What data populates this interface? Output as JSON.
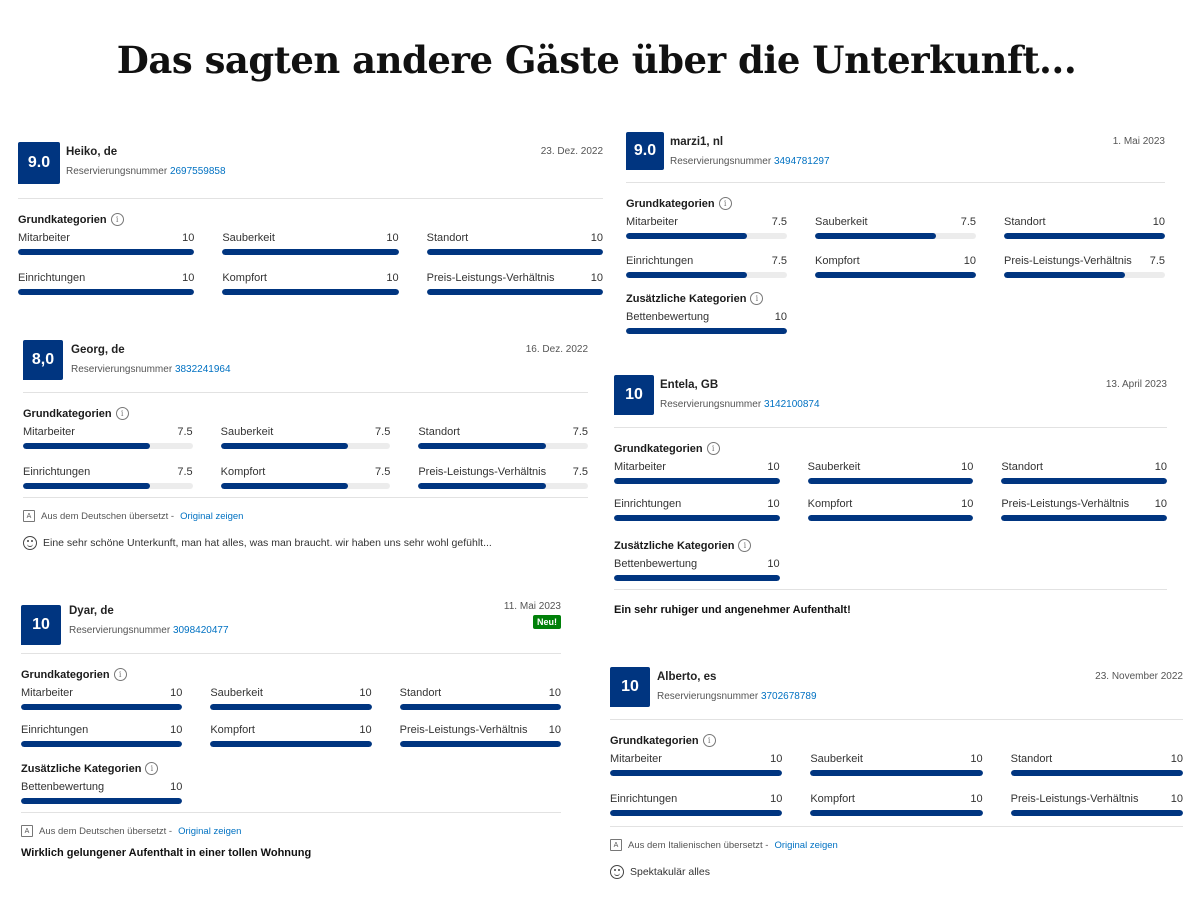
{
  "page": {
    "title": "Das sagten andere Gäste über die Unterkunft..."
  },
  "labels": {
    "reservation": "Reservierungsnummer",
    "core_categories": "Grundkategorien",
    "extra_categories": "Zusätzliche Kategorien",
    "info_icon": "i",
    "original_link": "Original zeigen"
  },
  "reviews": [
    {
      "name": "Heiko, de",
      "score": "9.0",
      "date": "23. Dez. 2022",
      "booking": "2697559858",
      "categories": [
        {
          "label": "Mitarbeiter",
          "value": "10"
        },
        {
          "label": "Sauberkeit",
          "value": "10"
        },
        {
          "label": "Standort",
          "value": "10"
        },
        {
          "label": "Einrichtungen",
          "value": "10"
        },
        {
          "label": "Kompfort",
          "value": "10"
        },
        {
          "label": "Preis-Leistungs-Verhältnis",
          "value": "10"
        }
      ]
    },
    {
      "name": "Georg, de",
      "score": "8,0",
      "date": "16. Dez. 2022",
      "booking": "3832241964",
      "categories": [
        {
          "label": "Mitarbeiter",
          "value": "7.5"
        },
        {
          "label": "Sauberkeit",
          "value": "7.5"
        },
        {
          "label": "Standort",
          "value": "7.5"
        },
        {
          "label": "Einrichtungen",
          "value": "7.5"
        },
        {
          "label": "Kompfort",
          "value": "7.5"
        },
        {
          "label": "Preis-Leistungs-Verhältnis",
          "value": "7.5"
        }
      ],
      "translated": "Aus dem Deutschen übersetzt -",
      "comment": "Eine sehr schöne Unterkunft, man hat alles, was man braucht. wir haben uns sehr wohl gefühlt..."
    },
    {
      "name": "Dyar, de",
      "score": "10",
      "date": "11. Mai 2023",
      "booking": "3098420477",
      "badge": "Neu!",
      "categories": [
        {
          "label": "Mitarbeiter",
          "value": "10"
        },
        {
          "label": "Sauberkeit",
          "value": "10"
        },
        {
          "label": "Standort",
          "value": "10"
        },
        {
          "label": "Einrichtungen",
          "value": "10"
        },
        {
          "label": "Kompfort",
          "value": "10"
        },
        {
          "label": "Preis-Leistungs-Verhältnis",
          "value": "10"
        }
      ],
      "extra": [
        {
          "label": "Bettenbewertung",
          "value": "10"
        }
      ],
      "translated": "Aus dem Deutschen übersetzt -",
      "headline": "Wirklich gelungener Aufenthalt in einer tollen Wohnung"
    },
    {
      "name": "marzi1, nl",
      "score": "9.0",
      "date": "1. Mai 2023",
      "booking": "3494781297",
      "categories": [
        {
          "label": "Mitarbeiter",
          "value": "7.5"
        },
        {
          "label": "Sauberkeit",
          "value": "7.5"
        },
        {
          "label": "Standort",
          "value": "10"
        },
        {
          "label": "Einrichtungen",
          "value": "7.5"
        },
        {
          "label": "Kompfort",
          "value": "10"
        },
        {
          "label": "Preis-Leistungs-Verhältnis",
          "value": "7.5"
        }
      ],
      "extra": [
        {
          "label": "Bettenbewertung",
          "value": "10"
        }
      ]
    },
    {
      "name": "Entela, GB",
      "score": "10",
      "date": "13. April 2023",
      "booking": "3142100874",
      "categories": [
        {
          "label": "Mitarbeiter",
          "value": "10"
        },
        {
          "label": "Sauberkeit",
          "value": "10"
        },
        {
          "label": "Standort",
          "value": "10"
        },
        {
          "label": "Einrichtungen",
          "value": "10"
        },
        {
          "label": "Kompfort",
          "value": "10"
        },
        {
          "label": "Preis-Leistungs-Verhältnis",
          "value": "10"
        }
      ],
      "extra": [
        {
          "label": "Bettenbewertung",
          "value": "10"
        }
      ],
      "headline": "Ein sehr ruhiger und angenehmer Aufenthalt!"
    },
    {
      "name": "Alberto, es",
      "score": "10",
      "date": "23. November 2022",
      "booking": "3702678789",
      "categories": [
        {
          "label": "Mitarbeiter",
          "value": "10"
        },
        {
          "label": "Sauberkeit",
          "value": "10"
        },
        {
          "label": "Standort",
          "value": "10"
        },
        {
          "label": "Einrichtungen",
          "value": "10"
        },
        {
          "label": "Kompfort",
          "value": "10"
        },
        {
          "label": "Preis-Leistungs-Verhältnis",
          "value": "10"
        }
      ],
      "translated": "Aus dem Italienischen übersetzt -",
      "comment": "Spektakulär alles"
    }
  ]
}
